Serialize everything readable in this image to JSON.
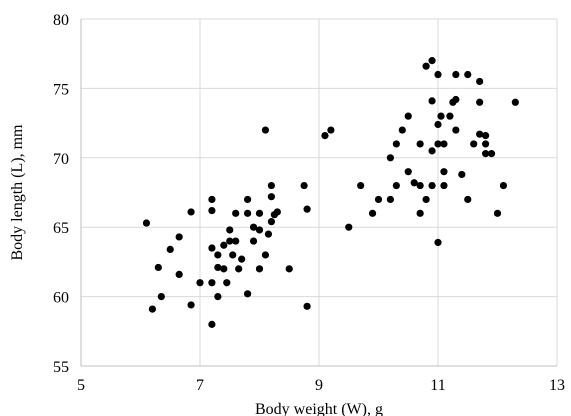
{
  "chart_data": {
    "type": "scatter",
    "title": "",
    "xlabel": "Body weight (W), g",
    "ylabel": "Body length (L), mm",
    "xlim": [
      5,
      13
    ],
    "ylim": [
      55,
      80
    ],
    "xticks": [
      5,
      7,
      9,
      11,
      13
    ],
    "yticks": [
      55,
      60,
      65,
      70,
      75,
      80
    ],
    "grid": true,
    "legend": "none",
    "marker_color": "#000000",
    "series": [
      {
        "points": [
          [
            6.1,
            65.3
          ],
          [
            6.2,
            59.1
          ],
          [
            6.3,
            62.1
          ],
          [
            6.35,
            60.0
          ],
          [
            6.5,
            63.4
          ],
          [
            6.65,
            61.6
          ],
          [
            6.65,
            64.3
          ],
          [
            6.85,
            66.1
          ],
          [
            6.85,
            59.4
          ],
          [
            7.0,
            61.0
          ],
          [
            7.2,
            67.0
          ],
          [
            7.2,
            66.2
          ],
          [
            7.2,
            63.5
          ],
          [
            7.2,
            61.0
          ],
          [
            7.2,
            58.0
          ],
          [
            7.3,
            62.1
          ],
          [
            7.3,
            60.0
          ],
          [
            7.3,
            63.0
          ],
          [
            7.4,
            63.7
          ],
          [
            7.4,
            62.0
          ],
          [
            7.45,
            61.0
          ],
          [
            7.5,
            64.0
          ],
          [
            7.5,
            64.8
          ],
          [
            7.55,
            63.0
          ],
          [
            7.6,
            64.0
          ],
          [
            7.6,
            66.0
          ],
          [
            7.65,
            62.0
          ],
          [
            7.7,
            62.7
          ],
          [
            7.8,
            66.0
          ],
          [
            7.8,
            67.0
          ],
          [
            7.8,
            60.2
          ],
          [
            7.9,
            64.0
          ],
          [
            7.9,
            65.0
          ],
          [
            8.0,
            62.0
          ],
          [
            8.0,
            64.8
          ],
          [
            8.0,
            66.0
          ],
          [
            8.1,
            63.0
          ],
          [
            8.1,
            72.0
          ],
          [
            8.15,
            64.5
          ],
          [
            8.2,
            65.4
          ],
          [
            8.2,
            67.2
          ],
          [
            8.2,
            68.0
          ],
          [
            8.25,
            65.9
          ],
          [
            8.3,
            66.1
          ],
          [
            8.5,
            62.0
          ],
          [
            8.75,
            68.0
          ],
          [
            8.8,
            66.3
          ],
          [
            8.8,
            59.3
          ],
          [
            9.1,
            71.6
          ],
          [
            9.2,
            72.0
          ],
          [
            9.5,
            65.0
          ],
          [
            9.7,
            68.0
          ],
          [
            9.9,
            66.0
          ],
          [
            10.0,
            67.0
          ],
          [
            10.2,
            70.0
          ],
          [
            10.2,
            67.0
          ],
          [
            10.3,
            68.0
          ],
          [
            10.3,
            71.0
          ],
          [
            10.4,
            72.0
          ],
          [
            10.5,
            73.0
          ],
          [
            10.5,
            69.0
          ],
          [
            10.6,
            68.2
          ],
          [
            10.7,
            68.0
          ],
          [
            10.7,
            66.0
          ],
          [
            10.7,
            71.0
          ],
          [
            10.8,
            67.0
          ],
          [
            10.8,
            76.6
          ],
          [
            10.9,
            77.0
          ],
          [
            10.9,
            74.1
          ],
          [
            10.9,
            70.5
          ],
          [
            10.9,
            68.0
          ],
          [
            11.0,
            76.0
          ],
          [
            11.0,
            72.4
          ],
          [
            11.0,
            71.0
          ],
          [
            11.0,
            63.9
          ],
          [
            11.05,
            73.0
          ],
          [
            11.1,
            71.0
          ],
          [
            11.1,
            69.0
          ],
          [
            11.1,
            68.0
          ],
          [
            11.2,
            73.0
          ],
          [
            11.25,
            74.0
          ],
          [
            11.3,
            74.2
          ],
          [
            11.3,
            72.0
          ],
          [
            11.3,
            76.0
          ],
          [
            11.4,
            68.8
          ],
          [
            11.5,
            76.0
          ],
          [
            11.5,
            67.0
          ],
          [
            11.6,
            71.0
          ],
          [
            11.7,
            75.5
          ],
          [
            11.7,
            74.0
          ],
          [
            11.7,
            71.7
          ],
          [
            11.8,
            71.6
          ],
          [
            11.8,
            71.0
          ],
          [
            11.8,
            70.3
          ],
          [
            11.9,
            70.3
          ],
          [
            12.0,
            66.0
          ],
          [
            12.1,
            68.0
          ],
          [
            12.3,
            74.0
          ]
        ]
      }
    ]
  }
}
